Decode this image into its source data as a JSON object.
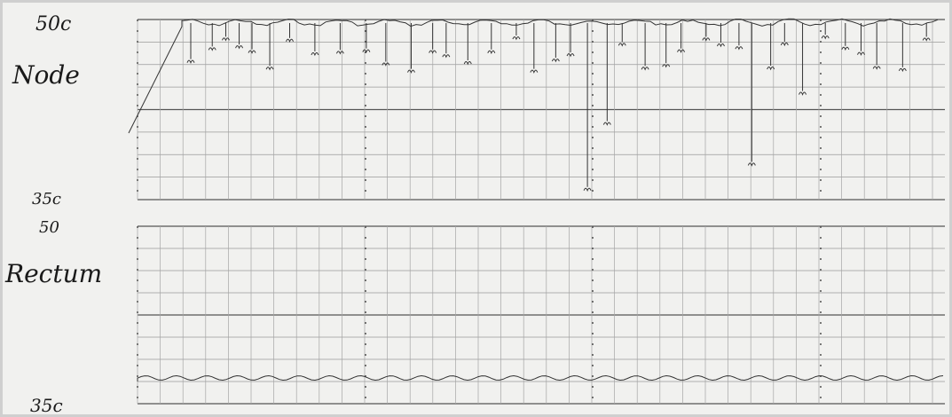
{
  "labels": {
    "upper_top": "50c",
    "upper_name": "Node",
    "upper_bottom": "35c",
    "lower_top": "50",
    "lower_name": "Rectum",
    "lower_bottom": "35c"
  }
}
